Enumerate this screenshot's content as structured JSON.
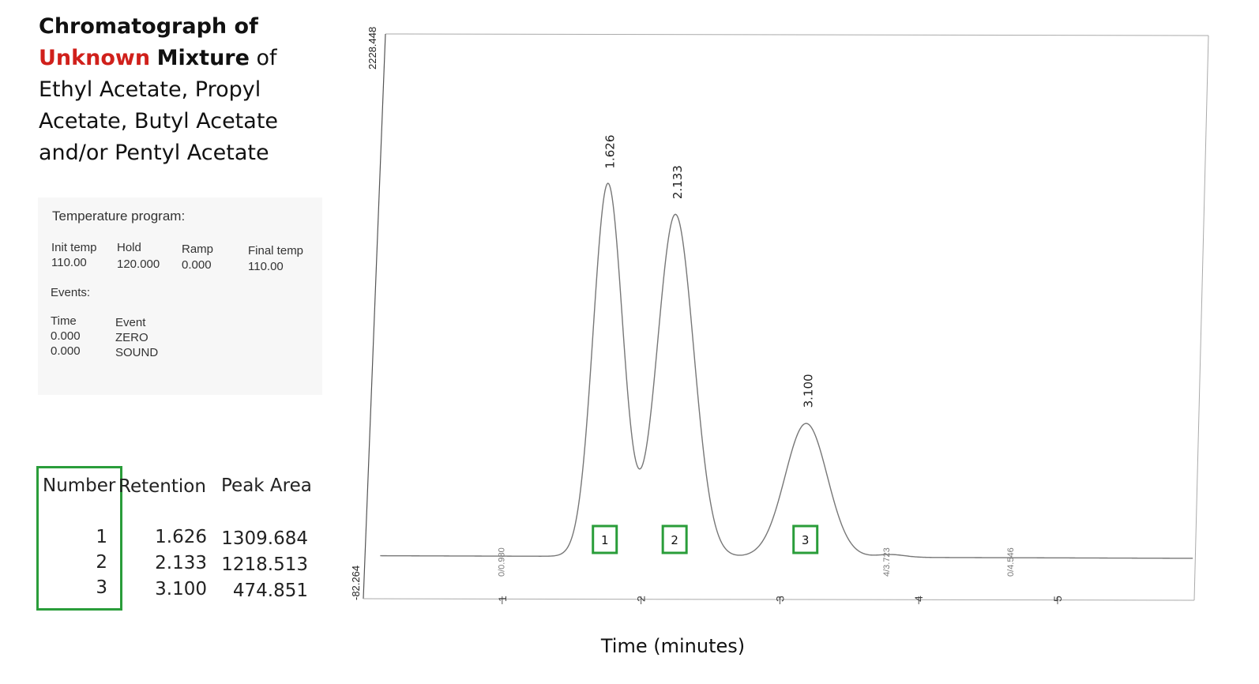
{
  "title": {
    "line1": "Chromatograph of",
    "unknown": "Unknown",
    "mixture": "Mixture",
    "of": "of",
    "line3": "Ethyl Acetate, Propyl",
    "line4": "Acetate, Butyl Acetate",
    "line5": "and/or Pentyl Acetate"
  },
  "colors": {
    "accent_red": "#d0201b",
    "box_green": "#2a9d3a",
    "trace": "#777777"
  },
  "temperature_program": {
    "heading": "Temperature program:",
    "headers": [
      "Init temp",
      "Hold",
      "Ramp",
      "Final temp"
    ],
    "values": [
      "110.00",
      "120.000",
      "0.000",
      "110.00"
    ],
    "events_heading": "Events:",
    "event_headers": [
      "Time",
      "Event"
    ],
    "events": [
      {
        "time": "0.000",
        "event": "ZERO"
      },
      {
        "time": "0.000",
        "event": "SOUND"
      }
    ]
  },
  "peak_table": {
    "headers": [
      "Number",
      "Retention",
      "Peak Area"
    ],
    "rows": [
      {
        "number": "1",
        "retention": "1.626",
        "area": "1309.684"
      },
      {
        "number": "2",
        "retention": "2.133",
        "area": "1218.513"
      },
      {
        "number": "3",
        "retention": "3.100",
        "area": "474.851"
      }
    ]
  },
  "chart_data": {
    "type": "line",
    "xlabel": "Time (minutes)",
    "ylabel": "",
    "y_top_label": "2228.448",
    "y_bottom_label": "-82.264",
    "xlim": [
      0.0,
      6.0
    ],
    "ylim": [
      -82.264,
      2228.448
    ],
    "x_ticks": [
      "1",
      "2",
      "3",
      "4",
      "5"
    ],
    "baseline": 10,
    "peaks": [
      {
        "id": "1",
        "label": "1.626",
        "x": 1.74,
        "height": 1590,
        "width": 0.105
      },
      {
        "id": "2",
        "label": "2.133",
        "x": 2.22,
        "height": 1460,
        "width": 0.13
      },
      {
        "id": "3",
        "label": "3.100",
        "x": 3.15,
        "height": 570,
        "width": 0.15
      },
      {
        "id": "",
        "label": "4/3.723",
        "x": 3.75,
        "height": 12,
        "width": 0.1
      }
    ],
    "minor_labels": [
      {
        "label": "0/0.980",
        "x": 0.98
      },
      {
        "label": "4/3.723",
        "x": 3.72
      },
      {
        "label": "0/4.546",
        "x": 4.6
      }
    ],
    "peak_number_boxes": [
      "1",
      "2",
      "3"
    ]
  }
}
